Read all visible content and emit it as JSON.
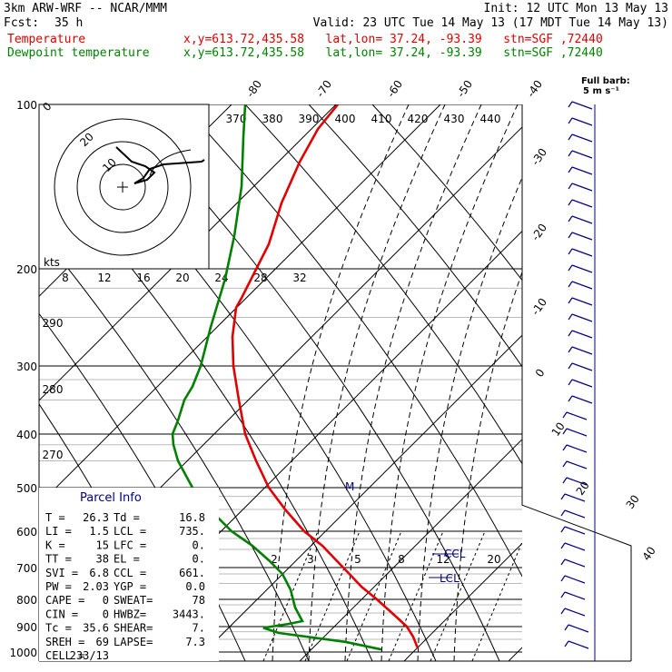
{
  "header": {
    "model": "3km ARW-WRF -- NCAR/MMM",
    "init": "Init: 12 UTC Mon 13 May 13",
    "fcst_label": "Fcst:",
    "fcst_value": "35 h",
    "valid": "Valid: 23 UTC Tue 14 May 13 (17 MDT Tue 14 May 13)",
    "temp_label": "Temperature",
    "dew_label": "Dewpoint temperature",
    "loc_info": "x,y=613.72,435.58   lat,lon= 37.24, -93.39   stn=SGF ,72440"
  },
  "barb_key": {
    "line1": "Full barb:",
    "line2": "5 m s⁻¹"
  },
  "chart_data": {
    "type": "line",
    "title": "",
    "xlabel": "",
    "ylabel": "",
    "pressure_ticks": [
      100,
      200,
      300,
      400,
      500,
      600,
      700,
      800,
      900,
      1000
    ],
    "skew_temp_labels": [
      "-80",
      "-70",
      "-60",
      "-50",
      "-40",
      "-30",
      "-20",
      "-10",
      "0",
      "10",
      "20",
      "30",
      "40"
    ],
    "theta_labels": [
      "370",
      "380",
      "390",
      "400",
      "410",
      "420",
      "430",
      "440"
    ],
    "theta_left_labels": [
      "290",
      "280",
      "270"
    ],
    "hodo_kts_label": "kts",
    "hodo_speed_labels": [
      "8",
      "12",
      "16",
      "20",
      "24",
      "28",
      "32"
    ],
    "mixing_ratio_labels": [
      "2",
      "3",
      "5",
      "8",
      "12",
      "20"
    ],
    "hodo_ring_labels": [
      "0",
      "10",
      "20"
    ],
    "markers": {
      "lcl": "LCL",
      "ccl": "CCL",
      "m": "M"
    },
    "series": [
      {
        "name": "Temperature",
        "color": "#e00000",
        "points": [
          [
            100,
            372
          ],
          [
            115,
            350
          ],
          [
            135,
            330
          ],
          [
            160,
            310
          ],
          [
            185,
            296
          ],
          [
            230,
            266
          ],
          [
            240,
            260
          ],
          [
            270,
            256
          ],
          [
            300,
            257
          ],
          [
            350,
            263
          ],
          [
            400,
            270
          ],
          [
            450,
            282
          ],
          [
            500,
            296
          ],
          [
            550,
            314
          ],
          [
            600,
            335
          ],
          [
            640,
            355
          ],
          [
            700,
            378
          ],
          [
            760,
            398
          ],
          [
            800,
            415
          ],
          [
            860,
            435
          ],
          [
            900,
            448
          ],
          [
            940,
            455
          ],
          [
            985,
            460
          ]
        ]
      },
      {
        "name": "Dewpoint temperature",
        "color": "#008000",
        "points": [
          [
            100,
            270
          ],
          [
            120,
            268
          ],
          [
            150,
            266
          ],
          [
            180,
            258
          ],
          [
            210,
            248
          ],
          [
            260,
            232
          ],
          [
            300,
            221
          ],
          [
            330,
            212
          ],
          [
            350,
            203
          ],
          [
            380,
            196
          ],
          [
            400,
            190
          ],
          [
            420,
            191
          ],
          [
            450,
            196
          ],
          [
            500,
            212
          ],
          [
            550,
            231
          ],
          [
            600,
            255
          ],
          [
            640,
            278
          ],
          [
            680,
            296
          ],
          [
            720,
            311
          ],
          [
            770,
            320
          ],
          [
            830,
            325
          ],
          [
            880,
            333
          ],
          [
            890,
            318
          ],
          [
            905,
            290
          ],
          [
            925,
            307
          ],
          [
            960,
            380
          ],
          [
            990,
            420
          ]
        ]
      }
    ]
  },
  "parcel_info": {
    "title": "Parcel Info",
    "rows": [
      [
        "T   =",
        "26.3",
        "Td =",
        "16.8"
      ],
      [
        "LI  =",
        "1.5",
        "LCL =",
        "735."
      ],
      [
        "K   =",
        "15",
        "LFC =",
        "0."
      ],
      [
        "TT  =",
        "38",
        "EL  =",
        "0."
      ],
      [
        "SVI =",
        "6.8",
        "CCL =",
        "661."
      ],
      [
        "PW  =",
        "2.03",
        "YGP =",
        "0.0"
      ],
      [
        "CAPE =",
        "0",
        "SWEAT=",
        "78"
      ],
      [
        "CIN  =",
        "0",
        "HWBZ=",
        "3443."
      ],
      [
        "Tc   =",
        "35.6",
        "SHEAR=",
        "7."
      ],
      [
        "SREH =",
        "69",
        "LAPSE=",
        "7.3"
      ],
      [
        "CELL =",
        "233/13",
        "",
        ""
      ]
    ]
  }
}
